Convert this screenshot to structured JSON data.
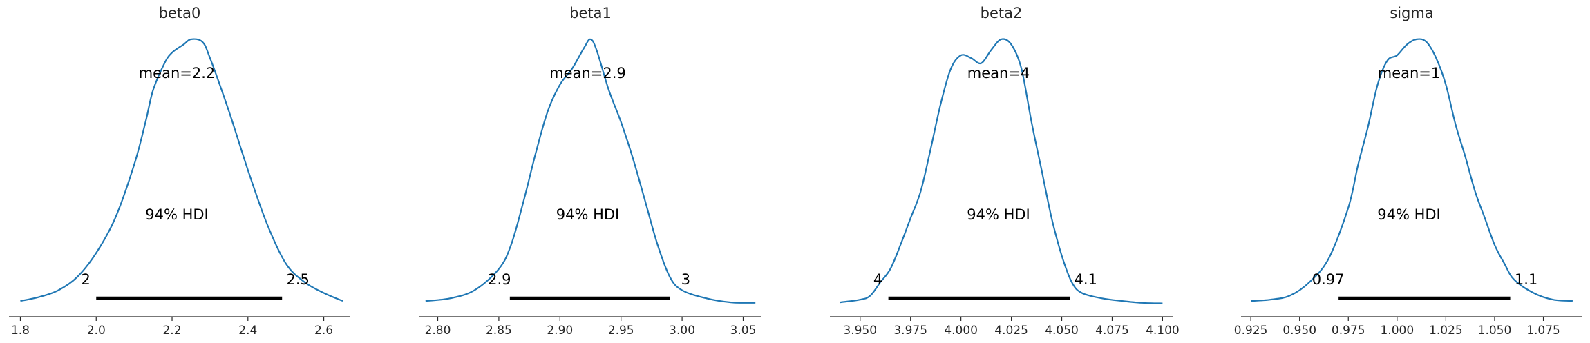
{
  "chart_data": [
    {
      "type": "area",
      "title": "beta0",
      "mean_label": "mean=2.2",
      "hdi_label": "94% HDI",
      "hdi": {
        "low": 2.0,
        "high": 2.49,
        "low_label": "2",
        "high_label": "2.5"
      },
      "xlim": [
        1.77,
        2.67
      ],
      "ticks": [
        1.8,
        2.0,
        2.2,
        2.4,
        2.6
      ],
      "tick_labels": [
        "1.8",
        "2.0",
        "2.2",
        "2.4",
        "2.6"
      ],
      "density": {
        "x": [
          1.8,
          1.85,
          1.9,
          1.95,
          2.0,
          2.05,
          2.1,
          2.13,
          2.15,
          2.18,
          2.2,
          2.23,
          2.25,
          2.28,
          2.3,
          2.35,
          2.4,
          2.45,
          2.5,
          2.55,
          2.6,
          2.65
        ],
        "y": [
          0.01,
          0.025,
          0.05,
          0.1,
          0.19,
          0.32,
          0.52,
          0.68,
          0.8,
          0.9,
          0.94,
          0.97,
          0.99,
          0.98,
          0.92,
          0.72,
          0.5,
          0.3,
          0.15,
          0.08,
          0.04,
          0.01
        ]
      }
    },
    {
      "type": "area",
      "title": "beta1",
      "mean_label": "mean=2.9",
      "hdi_label": "94% HDI",
      "hdi": {
        "low": 2.859,
        "high": 2.99,
        "low_label": "2.9",
        "high_label": "3"
      },
      "xlim": [
        2.785,
        3.065
      ],
      "ticks": [
        2.8,
        2.85,
        2.9,
        2.95,
        3.0,
        3.05
      ],
      "tick_labels": [
        "2.80",
        "2.85",
        "2.90",
        "2.95",
        "3.00",
        "3.05"
      ],
      "density": {
        "x": [
          2.79,
          2.81,
          2.83,
          2.85,
          2.86,
          2.87,
          2.88,
          2.89,
          2.9,
          2.91,
          2.92,
          2.925,
          2.93,
          2.94,
          2.95,
          2.96,
          2.97,
          2.98,
          2.99,
          3.0,
          3.02,
          3.04,
          3.06
        ],
        "y": [
          0.01,
          0.02,
          0.05,
          0.13,
          0.22,
          0.38,
          0.56,
          0.72,
          0.82,
          0.88,
          0.96,
          0.99,
          0.95,
          0.8,
          0.68,
          0.54,
          0.38,
          0.22,
          0.1,
          0.05,
          0.02,
          0.005,
          0.003
        ]
      }
    },
    {
      "type": "area",
      "title": "beta2",
      "mean_label": "mean=4",
      "hdi_label": "94% HDI",
      "hdi": {
        "low": 3.964,
        "high": 4.054,
        "low_label": "4",
        "high_label": "4.1"
      },
      "xlim": [
        3.935,
        4.105
      ],
      "ticks": [
        3.95,
        3.975,
        4.0,
        4.025,
        4.05,
        4.075,
        4.1
      ],
      "tick_labels": [
        "3.950",
        "3.975",
        "4.000",
        "4.025",
        "4.050",
        "4.075",
        "4.100"
      ],
      "density": {
        "x": [
          3.94,
          3.95,
          3.955,
          3.96,
          3.965,
          3.97,
          3.975,
          3.98,
          3.985,
          3.99,
          3.995,
          4.0,
          4.005,
          4.01,
          4.015,
          4.02,
          4.025,
          4.03,
          4.035,
          4.04,
          4.045,
          4.05,
          4.055,
          4.06,
          4.07,
          4.08,
          4.09,
          4.1
        ],
        "y": [
          0.005,
          0.015,
          0.03,
          0.08,
          0.13,
          0.22,
          0.32,
          0.42,
          0.58,
          0.75,
          0.88,
          0.93,
          0.92,
          0.9,
          0.95,
          0.99,
          0.97,
          0.88,
          0.68,
          0.5,
          0.32,
          0.18,
          0.08,
          0.04,
          0.02,
          0.01,
          0.003,
          0.001
        ]
      }
    },
    {
      "type": "area",
      "title": "sigma",
      "mean_label": "mean=1",
      "hdi_label": "94% HDI",
      "hdi": {
        "low": 0.97,
        "high": 1.058,
        "low_label": "0.97",
        "high_label": "1.1"
      },
      "xlim": [
        0.92,
        1.095
      ],
      "ticks": [
        0.925,
        0.95,
        0.975,
        1.0,
        1.025,
        1.05,
        1.075
      ],
      "tick_labels": [
        "0.925",
        "0.950",
        "0.975",
        "1.000",
        "1.025",
        "1.050",
        "1.075"
      ],
      "density": {
        "x": [
          0.925,
          0.935,
          0.945,
          0.955,
          0.965,
          0.975,
          0.98,
          0.985,
          0.99,
          0.995,
          1.0,
          1.005,
          1.01,
          1.015,
          1.02,
          1.025,
          1.03,
          1.035,
          1.04,
          1.045,
          1.05,
          1.055,
          1.06,
          1.07,
          1.08,
          1.09
        ],
        "y": [
          0.01,
          0.015,
          0.03,
          0.08,
          0.17,
          0.36,
          0.52,
          0.66,
          0.82,
          0.91,
          0.93,
          0.97,
          0.99,
          0.98,
          0.92,
          0.82,
          0.67,
          0.55,
          0.42,
          0.32,
          0.22,
          0.15,
          0.09,
          0.04,
          0.015,
          0.01
        ]
      }
    }
  ]
}
